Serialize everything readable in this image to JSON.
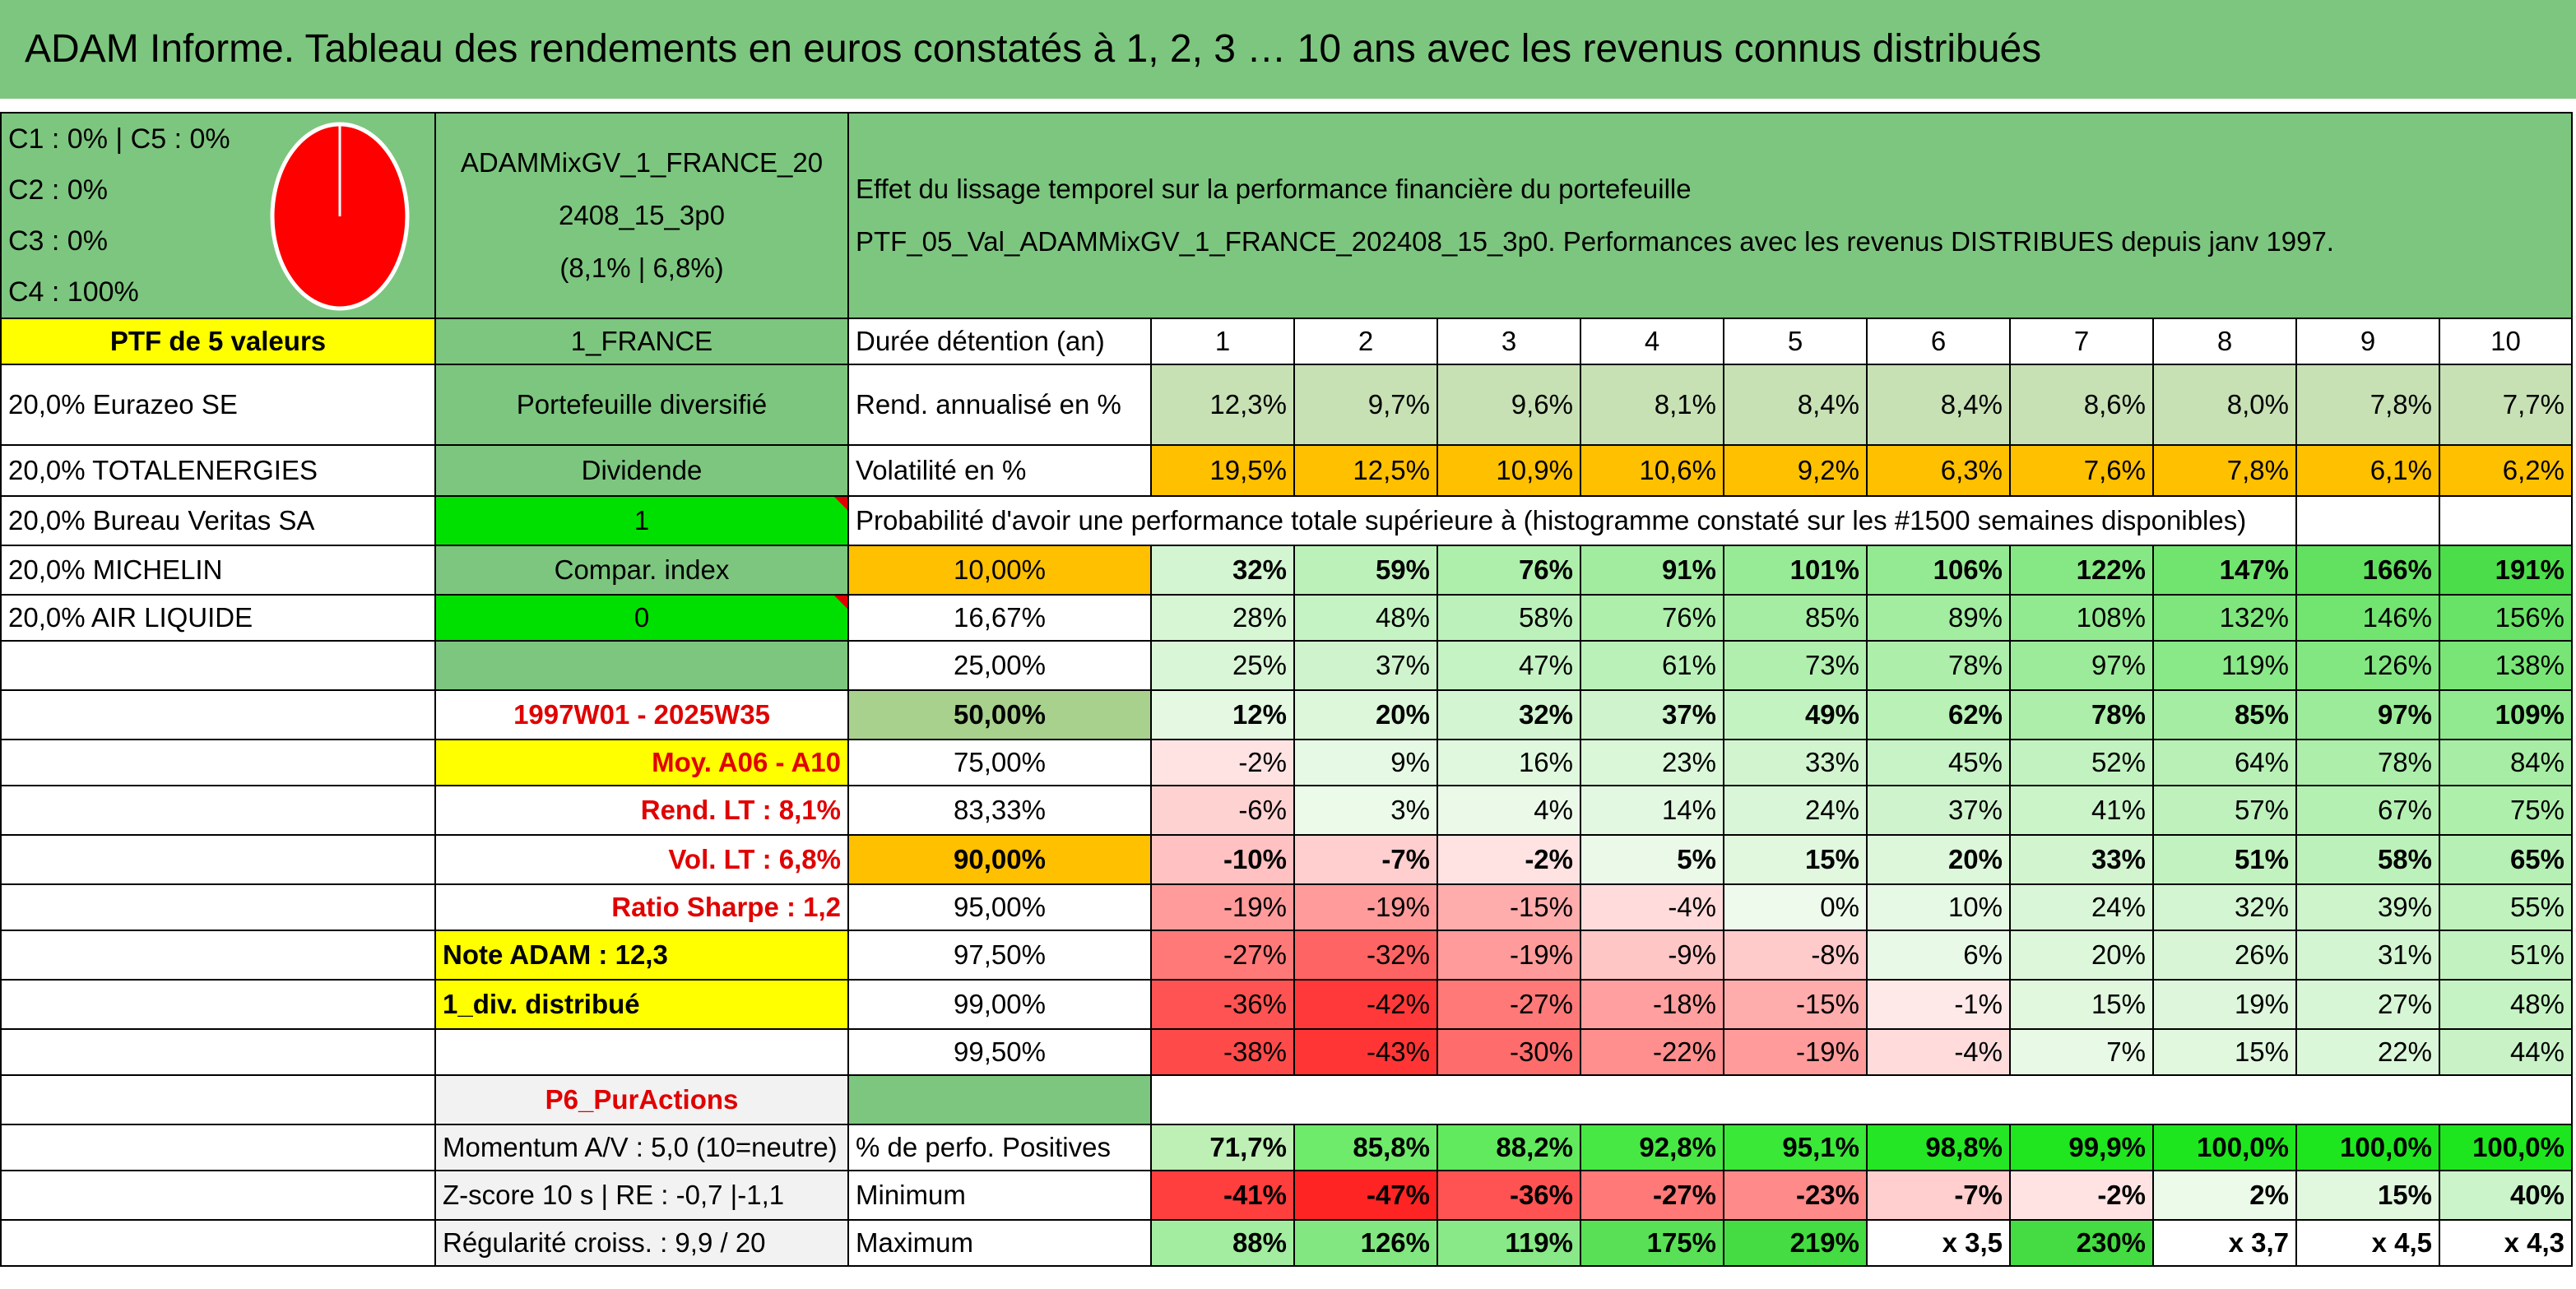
{
  "title": "ADAM Informe. Tableau des rendements en euros constatés à 1, 2, 3 … 10 ans avec les revenus connus distribués",
  "allocation": [
    "C1 : 0% | C5 : 0%",
    "C2 : 0%",
    "C3 : 0%",
    "C4 : 100%"
  ],
  "pie": {
    "slices": [
      {
        "label": "C4",
        "value": 100,
        "color": "#FF0000"
      }
    ]
  },
  "portfolio": {
    "code_line1": "ADAMMixGV_1_FRANCE_20",
    "code_line2": "2408_15_3p0",
    "code_line3": "(8,1% | 6,8%)"
  },
  "header_text": {
    "line1": "Effet du lissage temporel sur la performance financière du portefeuille",
    "line2": "PTF_05_Val_ADAMMixGV_1_FRANCE_202408_15_3p0. Performances avec les revenus DISTRIBUES depuis janv 1997."
  },
  "left": {
    "ptf_label": "PTF de 5 valeurs",
    "holdings": [
      "20,0% Eurazeo SE",
      "20,0% TOTALENERGIES",
      "20,0% Bureau Veritas SA",
      "20,0% MICHELIN",
      "20,0% AIR LIQUIDE"
    ]
  },
  "mid": {
    "region": "1_FRANCE",
    "type": "Portefeuille diversifié",
    "dividend_label": "Dividende",
    "dividend_value": "1",
    "compar_label": "Compar. index",
    "compar_value": "0",
    "period": "1997W01 - 2025W35",
    "moy": "Moy. A06 - A10",
    "rend_lt": "Rend. LT : 8,1%",
    "vol_lt": "Vol. LT : 6,8%",
    "sharpe": "Ratio Sharpe : 1,2",
    "note": "Note ADAM : 12,3",
    "div": "1_div. distribué",
    "p6": "P6_PurActions",
    "momentum": "Momentum A/V : 5,0 (10=neutre)",
    "zscore": "Z-score 10 s | RE : -0,7 |-1,1",
    "regularite": "Régularité croiss. : 9,9 / 20"
  },
  "table": {
    "duration_label": "Durée détention (an)",
    "years": [
      "1",
      "2",
      "3",
      "4",
      "5",
      "6",
      "7",
      "8",
      "9",
      "10"
    ],
    "rend_label": "Rend. annualisé en %",
    "rend": [
      "12,3%",
      "9,7%",
      "9,6%",
      "8,1%",
      "8,4%",
      "8,4%",
      "8,6%",
      "8,0%",
      "7,8%",
      "7,7%"
    ],
    "vol_label": "Volatilité en %",
    "vol": [
      "19,5%",
      "12,5%",
      "10,9%",
      "10,6%",
      "9,2%",
      "6,3%",
      "7,6%",
      "7,8%",
      "6,1%",
      "6,2%"
    ],
    "prob_label": "Probabilité d'avoir une performance totale supérieure à (histogramme constaté sur les #1500 semaines disponibles)",
    "quantiles": [
      {
        "q": "10,00%",
        "v": [
          "32%",
          "59%",
          "76%",
          "91%",
          "101%",
          "106%",
          "122%",
          "147%",
          "166%",
          "191%"
        ]
      },
      {
        "q": "16,67%",
        "v": [
          "28%",
          "48%",
          "58%",
          "76%",
          "85%",
          "89%",
          "108%",
          "132%",
          "146%",
          "156%"
        ]
      },
      {
        "q": "25,00%",
        "v": [
          "25%",
          "37%",
          "47%",
          "61%",
          "73%",
          "78%",
          "97%",
          "119%",
          "126%",
          "138%"
        ]
      },
      {
        "q": "50,00%",
        "v": [
          "12%",
          "20%",
          "32%",
          "37%",
          "49%",
          "62%",
          "78%",
          "85%",
          "97%",
          "109%"
        ]
      },
      {
        "q": "75,00%",
        "v": [
          "-2%",
          "9%",
          "16%",
          "23%",
          "33%",
          "45%",
          "52%",
          "64%",
          "78%",
          "84%"
        ]
      },
      {
        "q": "83,33%",
        "v": [
          "-6%",
          "3%",
          "4%",
          "14%",
          "24%",
          "37%",
          "41%",
          "57%",
          "67%",
          "75%"
        ]
      },
      {
        "q": "90,00%",
        "v": [
          "-10%",
          "-7%",
          "-2%",
          "5%",
          "15%",
          "20%",
          "33%",
          "51%",
          "58%",
          "65%"
        ]
      },
      {
        "q": "95,00%",
        "v": [
          "-19%",
          "-19%",
          "-15%",
          "-4%",
          "0%",
          "10%",
          "24%",
          "32%",
          "39%",
          "55%"
        ]
      },
      {
        "q": "97,50%",
        "v": [
          "-27%",
          "-32%",
          "-19%",
          "-9%",
          "-8%",
          "6%",
          "20%",
          "26%",
          "31%",
          "51%"
        ]
      },
      {
        "q": "99,00%",
        "v": [
          "-36%",
          "-42%",
          "-27%",
          "-18%",
          "-15%",
          "-1%",
          "15%",
          "19%",
          "27%",
          "48%"
        ]
      },
      {
        "q": "99,50%",
        "v": [
          "-38%",
          "-43%",
          "-30%",
          "-22%",
          "-19%",
          "-4%",
          "7%",
          "15%",
          "22%",
          "44%"
        ]
      }
    ],
    "pos_label": "% de perfo. Positives",
    "pos": [
      "71,7%",
      "85,8%",
      "88,2%",
      "92,8%",
      "95,1%",
      "98,8%",
      "99,9%",
      "100,0%",
      "100,0%",
      "100,0%"
    ],
    "min_label": "Minimum",
    "min": [
      "-41%",
      "-47%",
      "-36%",
      "-27%",
      "-23%",
      "-7%",
      "-2%",
      "2%",
      "15%",
      "40%"
    ],
    "max_label": "Maximum",
    "max": [
      "88%",
      "126%",
      "119%",
      "175%",
      "219%",
      "x 3,5",
      "230%",
      "x 3,7",
      "x 4,5",
      "x 4,3"
    ]
  },
  "colors": {
    "title_green": "#7DC67F",
    "yellow": "#FFFF00",
    "orange": "#FFC000",
    "bright_green": "#00E000",
    "red_text": "#E00000"
  }
}
